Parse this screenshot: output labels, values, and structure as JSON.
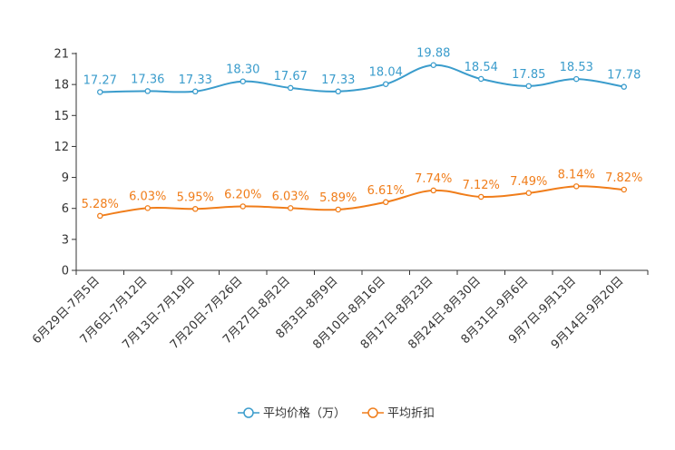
{
  "chart_data": {
    "type": "line",
    "title": "",
    "xlabel": "",
    "ylabel": "",
    "ylim": [
      0,
      21
    ],
    "yticks": [
      0,
      3,
      6,
      9,
      12,
      15,
      18,
      21
    ],
    "grid": false,
    "legend_position": "bottom-center",
    "categories": [
      "6月29日-7月5日",
      "7月6日-7月12日",
      "7月13日-7月19日",
      "7月20日-7月26日",
      "7月27日-8月2日",
      "8月3日-8月9日",
      "8月10日-8月16日",
      "8月17日-8月23日",
      "8月24日-8月30日",
      "8月31日-9月6日",
      "9月7日-9月13日",
      "9月14日-9月20日"
    ],
    "series": [
      {
        "name": "平均价格（万）",
        "color": "#3a9ccc",
        "values": [
          17.27,
          17.36,
          17.33,
          18.3,
          17.67,
          17.33,
          18.04,
          19.88,
          18.54,
          17.85,
          18.53,
          17.78
        ],
        "labels": [
          "17.27",
          "17.36",
          "17.33",
          "18.30",
          "17.67",
          "17.33",
          "18.04",
          "19.88",
          "18.54",
          "17.85",
          "18.53",
          "17.78"
        ]
      },
      {
        "name": "平均折扣",
        "color": "#f07d1a",
        "values": [
          5.28,
          6.03,
          5.95,
          6.2,
          6.03,
          5.89,
          6.61,
          7.74,
          7.12,
          7.49,
          8.14,
          7.82
        ],
        "labels": [
          "5.28%",
          "6.03%",
          "5.95%",
          "6.20%",
          "6.03%",
          "5.89%",
          "6.61%",
          "7.74%",
          "7.12%",
          "7.49%",
          "8.14%",
          "7.82%"
        ]
      }
    ]
  }
}
